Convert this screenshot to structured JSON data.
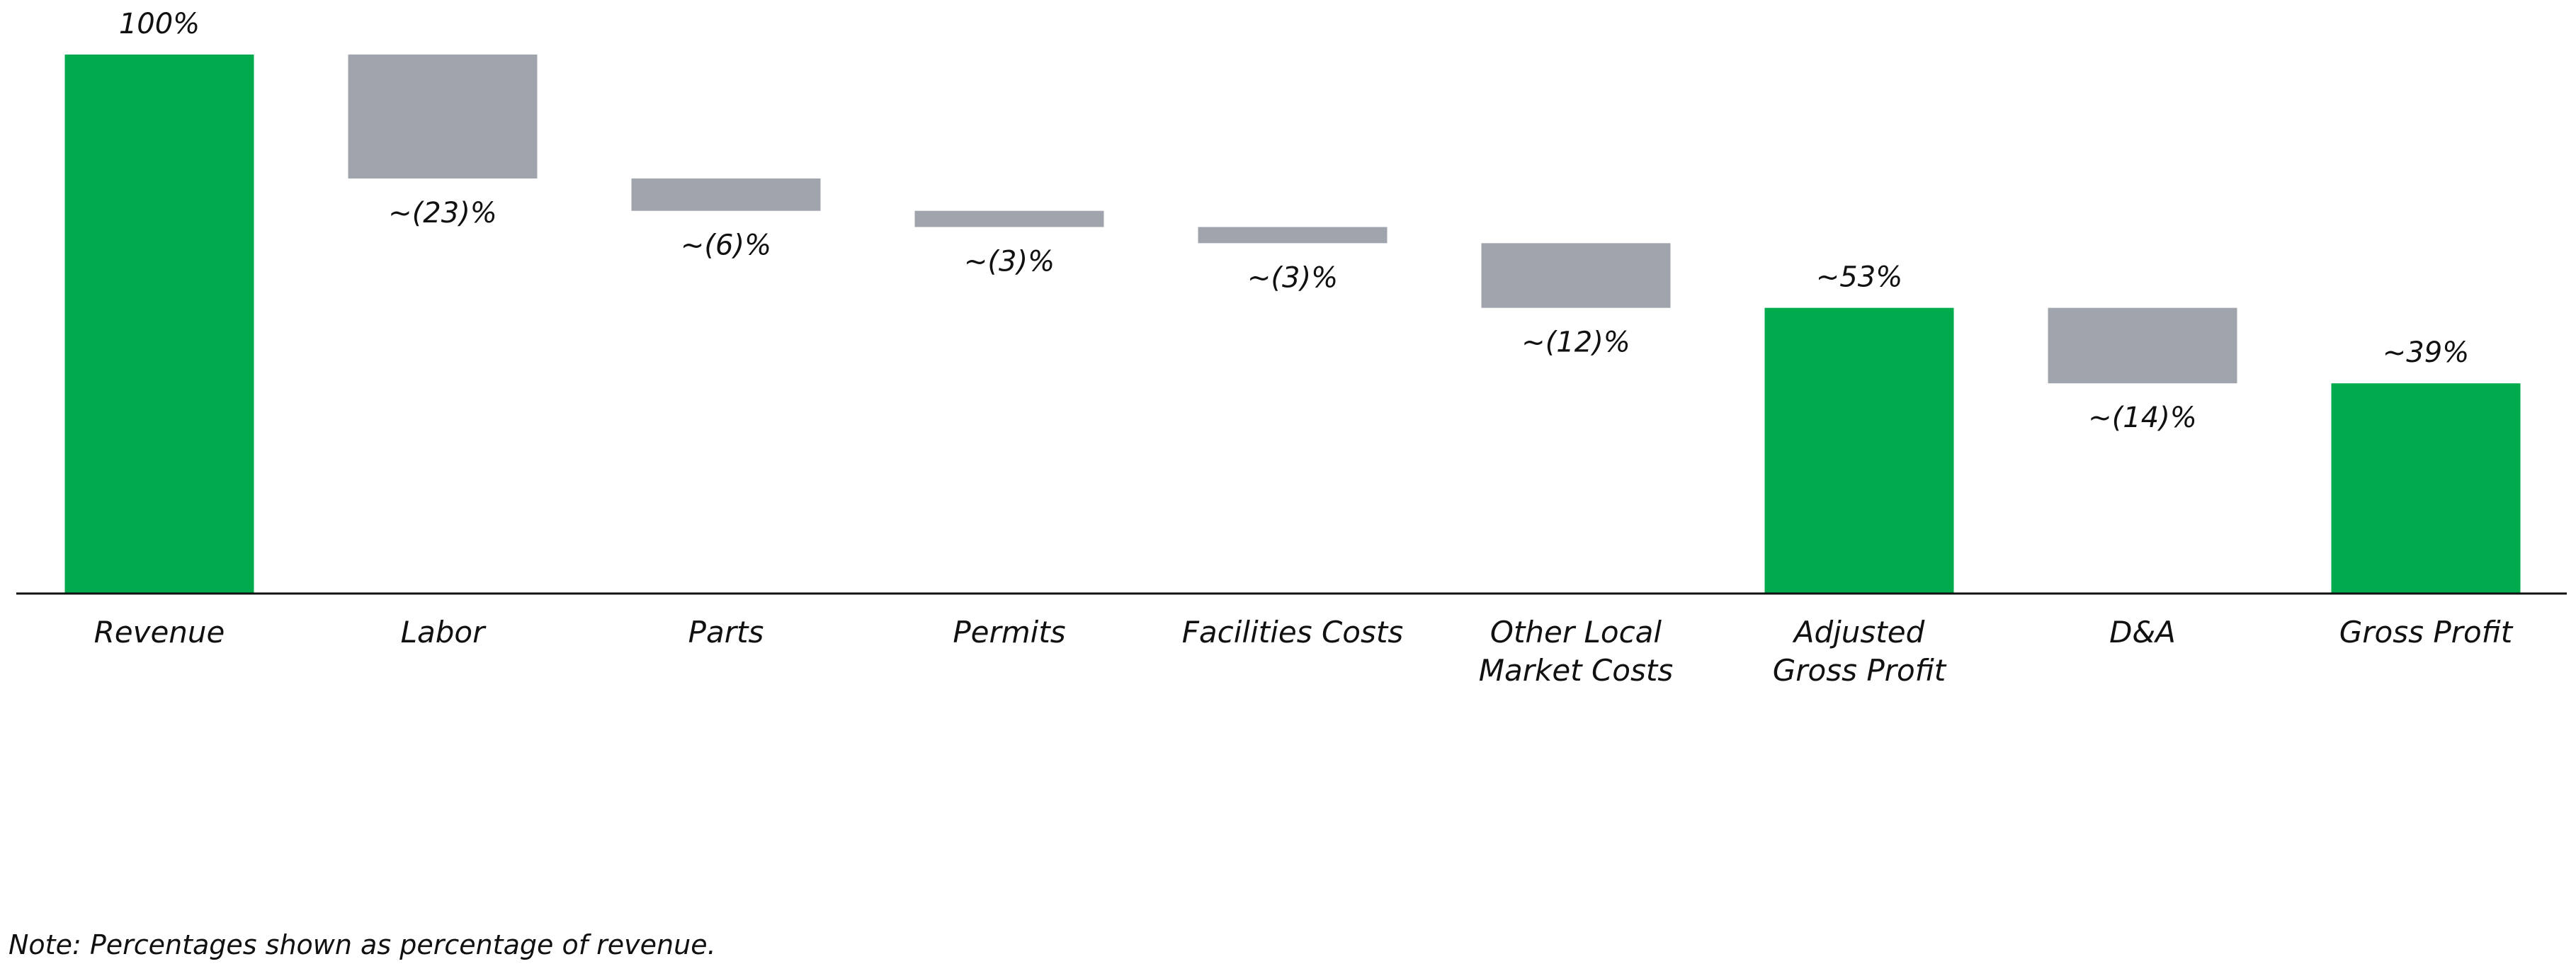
{
  "chart_data": {
    "type": "waterfall",
    "categories": [
      "Revenue",
      "Labor",
      "Parts",
      "Permits",
      "Facilities Costs",
      "Other Local\nMarket Costs",
      "Adjusted\nGross Profit",
      "D&A",
      "Gross Profit"
    ],
    "values": [
      100,
      -23,
      -6,
      -3,
      -3,
      -12,
      53,
      -14,
      39
    ],
    "value_labels": [
      "100%",
      "~(23)%",
      "~(6)%",
      "~(3)%",
      "~(3)%",
      "~(12)%",
      "~53%",
      "~(14)%",
      "~39%"
    ],
    "colors": [
      "#00ab4e",
      "#a0a4ad",
      "#a0a4ad",
      "#a0a4ad",
      "#a0a4ad",
      "#a0a4ad",
      "#00ab4e",
      "#a0a4ad",
      "#00ab4e"
    ],
    "ylim": [
      0,
      100
    ],
    "note": "Note: Percentages shown as percentage of revenue."
  }
}
